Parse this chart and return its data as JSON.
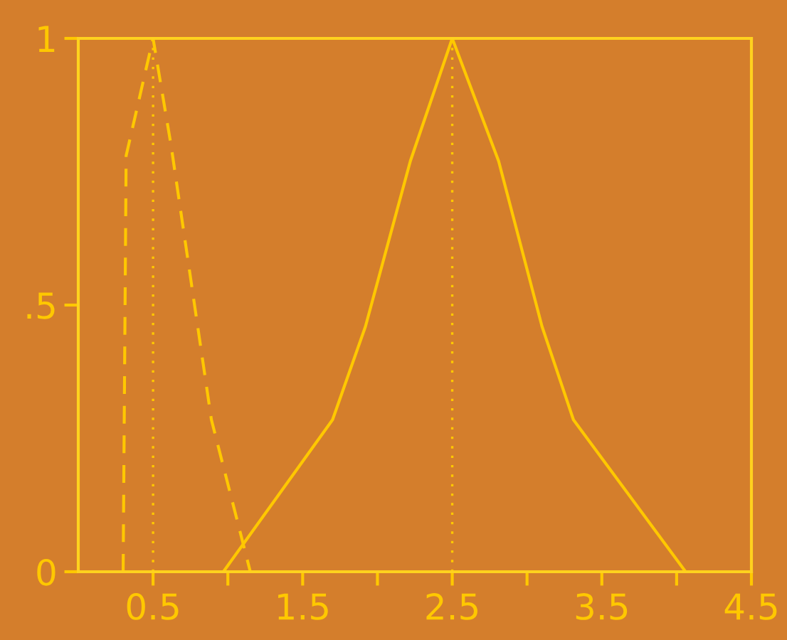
{
  "chart_data": {
    "type": "line",
    "series": [
      {
        "color": "#ffc800",
        "line_style": "dashed",
        "x": [
          0.3,
          0.32,
          0.5,
          0.62,
          0.89,
          1.15
        ],
        "values": [
          0,
          0.78,
          1,
          0.8,
          0.285,
          0
        ]
      },
      {
        "color": "#ffc800",
        "line_style": "solid",
        "x": [
          0.97,
          1.7,
          1.92,
          2.22,
          2.5,
          2.81,
          3.1,
          3.31,
          4.06
        ],
        "values": [
          0,
          0.285,
          0.46,
          0.77,
          1,
          0.77,
          0.46,
          0.285,
          0
        ]
      }
    ],
    "xlim": [
      0,
      4.5
    ],
    "ylim": [
      0,
      1
    ],
    "xticks": [
      0.5,
      {
        "value": 1,
        "label": null
      },
      1.5,
      {
        "value": 2,
        "label": null
      },
      2.5,
      {
        "value": 3,
        "label": null
      },
      3.5,
      {
        "value": 4,
        "label": null
      },
      4.5
    ],
    "yticks": [
      0,
      {
        "value": 0.5,
        "label": ".5"
      },
      1
    ],
    "ref_lines": [
      {
        "axis": "x",
        "value": 0.5,
        "color": "#ffc800",
        "line_style": "dotted"
      },
      {
        "axis": "x",
        "value": 2.5,
        "color": "#ffc800",
        "line_style": "dotted"
      }
    ],
    "grid": false,
    "legend": false
  }
}
